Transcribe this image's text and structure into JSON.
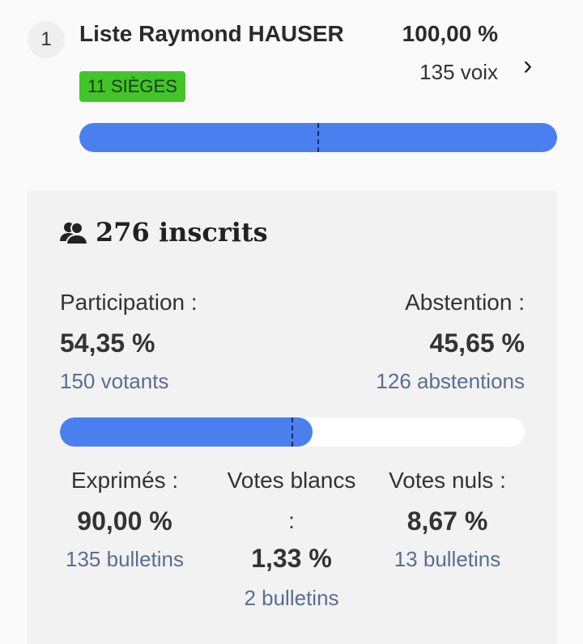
{
  "list": {
    "rank": "1",
    "name": "Liste Raymond HAUSER",
    "percent": "100,00 %",
    "votes": "135 voix",
    "seats": "11 SIÈGES",
    "bar_fill_percent": 100,
    "bar_color": "#4a7fef",
    "seats_color": "#43c42b"
  },
  "stats": {
    "registered": "276 inscrits",
    "participation": {
      "label": "Participation :",
      "value": "54,35 %",
      "sub": "150 votants",
      "fill_percent": 54.35
    },
    "abstention": {
      "label": "Abstention :",
      "value": "45,65 %",
      "sub": "126 abstentions"
    },
    "expressed": {
      "label": "Exprimés :",
      "value": "90,00 %",
      "sub": "135 bulletins"
    },
    "blank": {
      "label": "Votes blancs",
      "label2": ":",
      "value": "1,33 %",
      "sub": "2 bulletins"
    },
    "null": {
      "label": "Votes nuls :",
      "value": "8,67 %",
      "sub": "13 bulletins"
    }
  }
}
